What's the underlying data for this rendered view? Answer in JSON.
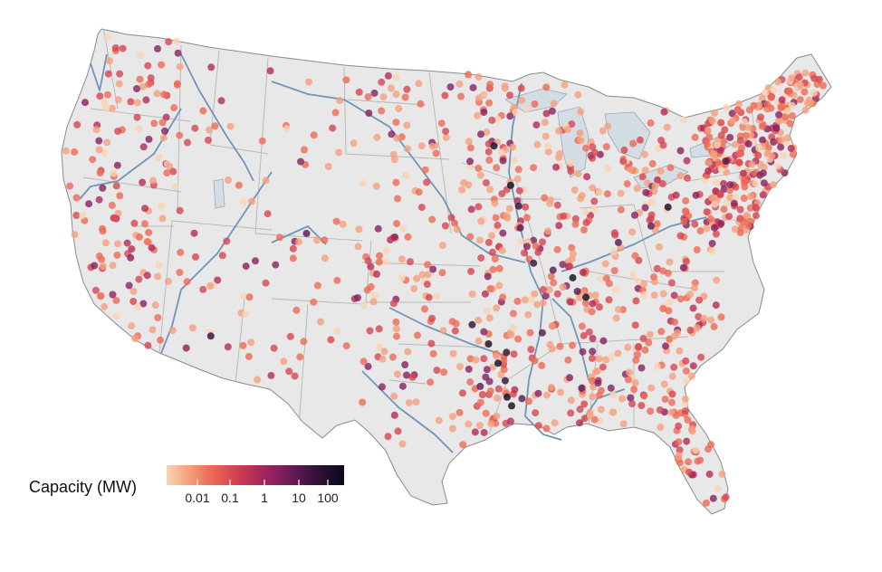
{
  "legend": {
    "title": "Capacity (MW)",
    "ticks": [
      "0.01",
      "0.1",
      "1",
      "10",
      "100"
    ],
    "colors": [
      "#f9d3b4",
      "#f5a07e",
      "#ec6a55",
      "#d64550",
      "#b32b58",
      "#86215e",
      "#57174f",
      "#2a0f33",
      "#0b0a1c"
    ]
  },
  "colors": {
    "land": "#e8e8e8",
    "state_border": "#b6b6b6",
    "outline": "#8a8a8a",
    "river": "#6f95b8",
    "lake": "#d4dde4"
  }
}
